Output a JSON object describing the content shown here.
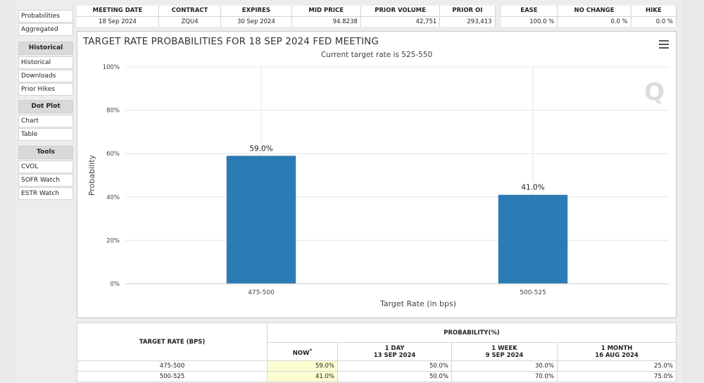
{
  "sidebar": {
    "items_top": [
      "Probabilities",
      "Aggregated"
    ],
    "sections": [
      {
        "title": "Historical",
        "items": [
          "Historical",
          "Downloads",
          "Prior Hikes"
        ]
      },
      {
        "title": "Dot Plot",
        "items": [
          "Chart",
          "Table"
        ]
      },
      {
        "title": "Tools",
        "items": [
          "CVOL",
          "SOFR Watch",
          "ESTR Watch"
        ]
      }
    ]
  },
  "top_table": {
    "headers": [
      "MEETING DATE",
      "CONTRACT",
      "EXPIRES",
      "MID PRICE",
      "PRIOR VOLUME",
      "PRIOR OI",
      "EASE",
      "NO CHANGE",
      "HIKE"
    ],
    "row": [
      "18 Sep 2024",
      "ZQU4",
      "30 Sep 2024",
      "94.8238",
      "42,751",
      "293,413",
      "100.0 %",
      "0.0 %",
      "0.0 %"
    ]
  },
  "chart": {
    "title": "TARGET RATE PROBABILITIES FOR 18 SEP 2024 FED MEETING",
    "subtitle": "Current target rate is 525-550",
    "watermark": "Q",
    "colors": {
      "bar": "#2b7bb4",
      "grid": "#e6e6e6"
    }
  },
  "chart_data": {
    "type": "bar",
    "title": "TARGET RATE PROBABILITIES FOR 18 SEP 2024 FED MEETING",
    "subtitle": "Current target rate is 525-550",
    "categories": [
      "475-500",
      "500-525"
    ],
    "values": [
      59.0,
      41.0
    ],
    "data_labels": [
      "59.0%",
      "41.0%"
    ],
    "xlabel": "Target Rate (in bps)",
    "ylabel": "Probability",
    "ylim": [
      0,
      100
    ],
    "yticks": [
      "0%",
      "20%",
      "40%",
      "60%",
      "80%",
      "100%"
    ],
    "grid": true
  },
  "bottom_table": {
    "col1_header": "TARGET RATE (BPS)",
    "group_header": "PROBABILITY(%)",
    "now_label": "NOW",
    "now_mark": "*",
    "cols": [
      {
        "line1": "1 DAY",
        "line2": "13 SEP 2024"
      },
      {
        "line1": "1 WEEK",
        "line2": "9 SEP 2024"
      },
      {
        "line1": "1 MONTH",
        "line2": "16 AUG 2024"
      }
    ],
    "rows": [
      {
        "rate": "475-500",
        "now": "59.0%",
        "d1": "50.0%",
        "w1": "30.0%",
        "m1": "25.0%"
      },
      {
        "rate": "500-525",
        "now": "41.0%",
        "d1": "50.0%",
        "w1": "70.0%",
        "m1": "75.0%"
      }
    ]
  }
}
